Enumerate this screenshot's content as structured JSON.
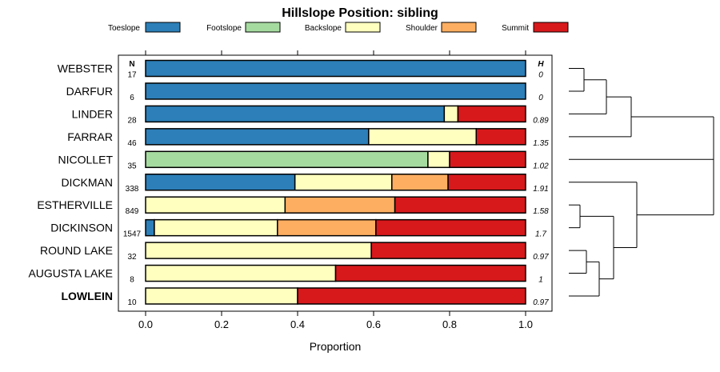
{
  "chart_data": {
    "type": "bar",
    "orientation": "horizontal",
    "stacked": true,
    "title": "Hillslope Position: sibling",
    "xlabel": "Proportion",
    "ylabel": "",
    "xlim": [
      0,
      1
    ],
    "xticks": [
      "0.0",
      "0.2",
      "0.4",
      "0.6",
      "0.8",
      "1.0"
    ],
    "xtick_values": [
      0,
      0.2,
      0.4,
      0.6,
      0.8,
      1.0
    ],
    "n_header": "N",
    "h_header": "H",
    "legend_position": "top",
    "categories": [
      "WEBSTER",
      "DARFUR",
      "LINDER",
      "FARRAR",
      "NICOLLET",
      "DICKMAN",
      "ESTHERVILLE",
      "DICKINSON",
      "ROUND LAKE",
      "AUGUSTA LAKE",
      "LOWLEIN"
    ],
    "highlight_category": "LOWLEIN",
    "n": [
      "17",
      "6",
      "28",
      "46",
      "35",
      "338",
      "849",
      "1547",
      "32",
      "8",
      "10"
    ],
    "h": [
      "0",
      "0",
      "0.89",
      "1.35",
      "1.02",
      "1.91",
      "1.58",
      "1.7",
      "0.97",
      "1",
      "0.97"
    ],
    "series": [
      {
        "name": "Toeslope",
        "color": "#2C7FB8",
        "values": [
          1.0,
          1.0,
          0.786,
          0.587,
          0.0,
          0.393,
          0.0,
          0.023,
          0.0,
          0.0,
          0.0
        ]
      },
      {
        "name": "Footslope",
        "color": "#A6DBA0",
        "values": [
          0.0,
          0.0,
          0.0,
          0.0,
          0.743,
          0.0,
          0.0,
          0.0,
          0.0,
          0.0,
          0.0
        ]
      },
      {
        "name": "Backslope",
        "color": "#FFFFBF",
        "values": [
          0.0,
          0.0,
          0.036,
          0.283,
          0.057,
          0.255,
          0.367,
          0.324,
          0.594,
          0.5,
          0.4
        ]
      },
      {
        "name": "Shoulder",
        "color": "#FDAE61",
        "values": [
          0.0,
          0.0,
          0.0,
          0.0,
          0.0,
          0.148,
          0.289,
          0.259,
          0.0,
          0.0,
          0.0
        ]
      },
      {
        "name": "Summit",
        "color": "#D7191C",
        "values": [
          0.0,
          0.0,
          0.178,
          0.13,
          0.2,
          0.204,
          0.344,
          0.394,
          0.406,
          0.5,
          0.6
        ]
      }
    ],
    "dendrogram_order": [
      "WEBSTER",
      "DARFUR",
      "LINDER",
      "FARRAR",
      "NICOLLET",
      "DICKMAN",
      "ESTHERVILLE",
      "DICKINSON",
      "ROUND LAKE",
      "AUGUSTA LAKE",
      "LOWLEIN"
    ]
  }
}
